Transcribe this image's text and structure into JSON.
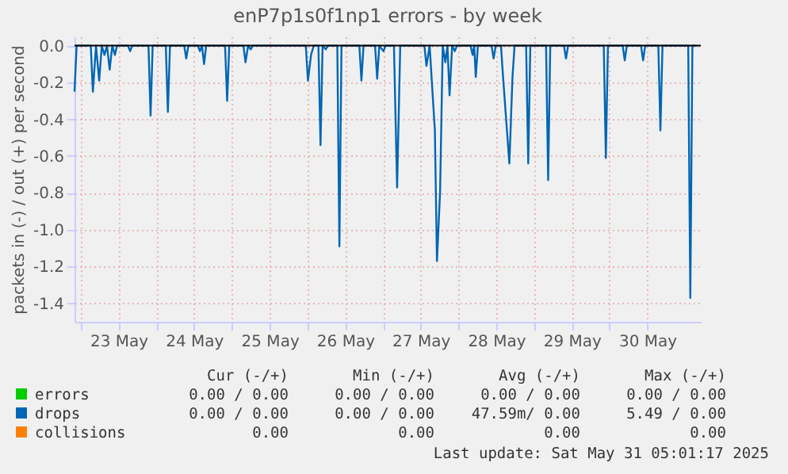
{
  "chart_data": {
    "type": "line",
    "title": "enP7p1s0f1np1 errors - by week",
    "ylabel": "packets in (-) / out (+) per second",
    "xlim": [
      "2025-05-22T22:00",
      "2025-05-31T05:00"
    ],
    "xticks": [
      {
        "value": "2025-05-23T00:00",
        "label": null
      },
      {
        "value": "2025-05-23T12:00",
        "label": "23 May"
      },
      {
        "value": "2025-05-24T00:00",
        "label": null
      },
      {
        "value": "2025-05-24T12:00",
        "label": "24 May"
      },
      {
        "value": "2025-05-25T00:00",
        "label": null
      },
      {
        "value": "2025-05-25T12:00",
        "label": "25 May"
      },
      {
        "value": "2025-05-26T00:00",
        "label": null
      },
      {
        "value": "2025-05-26T12:00",
        "label": "26 May"
      },
      {
        "value": "2025-05-27T00:00",
        "label": null
      },
      {
        "value": "2025-05-27T12:00",
        "label": "27 May"
      },
      {
        "value": "2025-05-28T00:00",
        "label": null
      },
      {
        "value": "2025-05-28T12:00",
        "label": "28 May"
      },
      {
        "value": "2025-05-29T00:00",
        "label": null
      },
      {
        "value": "2025-05-29T12:00",
        "label": "29 May"
      },
      {
        "value": "2025-05-30T00:00",
        "label": null
      },
      {
        "value": "2025-05-30T12:00",
        "label": "30 May"
      }
    ],
    "ylim": [
      -1.5,
      0.05
    ],
    "yticks": [
      {
        "value": -1.4,
        "label": "-1.4"
      },
      {
        "value": -1.2,
        "label": "-1.2"
      },
      {
        "value": -1,
        "label": "-1.0"
      },
      {
        "value": -0.8,
        "label": "-0.8"
      },
      {
        "value": -0.6,
        "label": "-0.6"
      },
      {
        "value": -0.4,
        "label": "-0.4"
      },
      {
        "value": -0.2,
        "label": "-0.2"
      },
      {
        "value": 0,
        "label": "0.0"
      }
    ],
    "grid": true,
    "marker": "none",
    "line_style": "solid",
    "legend": "bottom",
    "ref_lines": [
      {
        "axis": "y",
        "value": 0,
        "color": "#000000"
      }
    ],
    "series": [
      {
        "name": "errors",
        "color": "#00cc00"
      },
      {
        "name": "drops",
        "color": "#0066b3",
        "x": [
          "2025-05-22T22:00",
          "2025-05-22T22:40",
          "2025-05-23T03:10",
          "2025-05-23T03:50",
          "2025-05-23T04:50",
          "2025-05-23T05:50",
          "2025-05-23T06:40",
          "2025-05-23T07:30",
          "2025-05-23T08:20",
          "2025-05-23T09:10",
          "2025-05-23T10:00",
          "2025-05-23T10:50",
          "2025-05-23T11:30",
          "2025-05-23T15:00",
          "2025-05-23T15:40",
          "2025-05-23T16:20",
          "2025-05-23T21:30",
          "2025-05-23T22:10",
          "2025-05-23T22:50",
          "2025-05-24T03:00",
          "2025-05-24T03:40",
          "2025-05-24T04:20",
          "2025-05-24T08:50",
          "2025-05-24T09:30",
          "2025-05-24T10:10",
          "2025-05-24T13:10",
          "2025-05-24T13:50",
          "2025-05-24T14:30",
          "2025-05-24T15:10",
          "2025-05-24T15:50",
          "2025-05-24T21:50",
          "2025-05-24T22:30",
          "2025-05-24T23:10",
          "2025-05-25T03:40",
          "2025-05-25T04:20",
          "2025-05-25T05:10",
          "2025-05-25T06:00",
          "2025-05-25T06:40",
          "2025-05-25T23:30",
          "2025-05-26T00:10",
          "2025-05-26T01:10",
          "2025-05-26T02:00",
          "2025-05-26T03:30",
          "2025-05-26T04:10",
          "2025-05-26T04:50",
          "2025-05-26T05:50",
          "2025-05-26T06:30",
          "2025-05-26T09:30",
          "2025-05-26T10:10",
          "2025-05-26T10:50",
          "2025-05-26T16:30",
          "2025-05-26T17:10",
          "2025-05-26T17:50",
          "2025-05-26T21:30",
          "2025-05-26T22:10",
          "2025-05-26T22:50",
          "2025-05-27T00:10",
          "2025-05-27T00:50",
          "2025-05-27T03:30",
          "2025-05-27T04:30",
          "2025-05-27T05:30",
          "2025-05-27T13:10",
          "2025-05-27T13:50",
          "2025-05-27T14:50",
          "2025-05-27T16:30",
          "2025-05-27T17:10",
          "2025-05-27T18:10",
          "2025-05-27T19:00",
          "2025-05-27T19:50",
          "2025-05-27T20:30",
          "2025-05-27T21:10",
          "2025-05-27T22:00",
          "2025-05-27T22:50",
          "2025-05-27T23:30",
          "2025-05-28T03:50",
          "2025-05-28T04:30",
          "2025-05-28T05:00",
          "2025-05-28T05:30",
          "2025-05-28T06:10",
          "2025-05-28T10:30",
          "2025-05-28T11:10",
          "2025-05-28T11:50",
          "2025-05-28T13:30",
          "2025-05-28T14:10",
          "2025-05-28T16:10",
          "2025-05-28T17:10",
          "2025-05-28T17:50",
          "2025-05-28T21:30",
          "2025-05-28T22:10",
          "2025-05-28T22:50",
          "2025-05-29T03:50",
          "2025-05-29T04:30",
          "2025-05-29T05:10",
          "2025-05-29T09:30",
          "2025-05-29T10:10",
          "2025-05-29T10:50",
          "2025-05-29T22:10",
          "2025-05-29T22:50",
          "2025-05-29T23:30",
          "2025-05-30T04:10",
          "2025-05-30T04:50",
          "2025-05-30T05:30",
          "2025-05-30T10:00",
          "2025-05-30T10:40",
          "2025-05-30T11:20",
          "2025-05-30T15:30",
          "2025-05-30T16:10",
          "2025-05-30T16:50",
          "2025-05-31T01:00",
          "2025-05-31T01:40",
          "2025-05-31T02:20",
          "2025-05-31T04:00"
        ],
        "values": [
          -0.25,
          0,
          0,
          -0.25,
          0,
          -0.19,
          0,
          -0.05,
          0,
          -0.13,
          0,
          -0.05,
          0,
          0,
          -0.03,
          0,
          0,
          -0.38,
          0,
          0,
          -0.36,
          0,
          0,
          -0.07,
          0,
          0,
          -0.03,
          0,
          -0.1,
          0,
          0,
          -0.3,
          0,
          0,
          -0.09,
          0,
          -0.02,
          0,
          0,
          -0.19,
          -0.05,
          0,
          0,
          -0.54,
          0,
          -0.02,
          0,
          0,
          -1.09,
          0,
          0,
          -0.19,
          0,
          0,
          -0.18,
          0,
          -0.03,
          0,
          0,
          -0.77,
          0,
          0,
          -0.11,
          0,
          -0.46,
          -1.17,
          -0.79,
          0,
          -0.09,
          0,
          -0.27,
          0,
          -0.03,
          0,
          0,
          -0.05,
          0,
          -0.17,
          0,
          0,
          -0.07,
          0,
          0,
          -0.17,
          -0.64,
          -0.17,
          0,
          0,
          -0.64,
          0,
          0,
          -0.73,
          0,
          0,
          -0.07,
          0,
          0,
          -0.61,
          0,
          0,
          -0.08,
          0,
          0,
          -0.08,
          0,
          0,
          -0.46,
          0,
          0,
          -1.37,
          0,
          0
        ]
      },
      {
        "name": "collisions",
        "color": "#ff8000"
      }
    ],
    "annotations": [
      "Cur (-/+)",
      "Min (-/+)",
      "Avg (-/+)",
      "Max (-/+)",
      "0.00 / 0.00",
      "0.00 / 0.00",
      "0.00 / 0.00",
      "0.00 / 0.00",
      "0.00 / 0.00",
      "0.00 / 0.00",
      "47.59m/ 0.00",
      "5.49 / 0.00",
      "0.00",
      "0.00",
      "0.00",
      "0.00",
      "Last update: Sat May 31 05:01:17 2025"
    ]
  }
}
